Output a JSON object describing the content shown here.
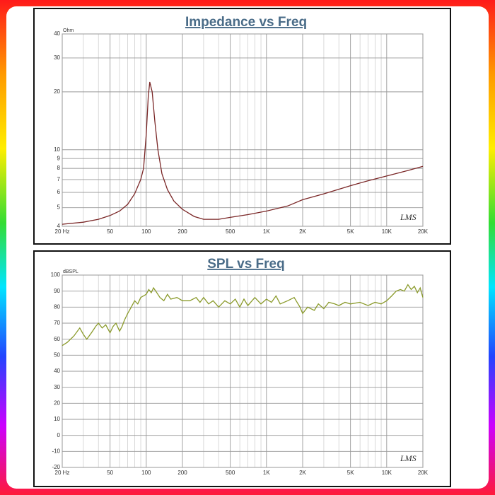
{
  "chart_data": [
    {
      "type": "line",
      "title": "Impedance vs Freq",
      "y_unit": "Ohm",
      "annotation": "LMS",
      "xscale": "log",
      "yscale": "log",
      "grid": true,
      "color": "#7a2626",
      "xlim": [
        20,
        20000
      ],
      "ylim": [
        4,
        40
      ],
      "xticks": [
        {
          "value": 20,
          "label": "20 Hz"
        },
        50,
        100,
        200,
        500,
        {
          "value": 1000,
          "label": "1K"
        },
        {
          "value": 2000,
          "label": "2K"
        },
        {
          "value": 5000,
          "label": "5K"
        },
        {
          "value": 10000,
          "label": "10K"
        },
        {
          "value": 20000,
          "label": "20K"
        }
      ],
      "x_minor_grid": [
        30,
        40,
        60,
        70,
        80,
        90,
        300,
        400,
        600,
        700,
        800,
        900,
        3000,
        4000,
        6000,
        7000,
        8000,
        9000
      ],
      "yticks": [
        4,
        5,
        6,
        7,
        8,
        9,
        10,
        20,
        30,
        40
      ],
      "x": [
        20,
        30,
        40,
        50,
        60,
        70,
        80,
        90,
        95,
        100,
        104,
        107,
        112,
        118,
        125,
        135,
        150,
        170,
        200,
        250,
        300,
        400,
        500,
        700,
        1000,
        1500,
        2000,
        3000,
        5000,
        7000,
        10000,
        15000,
        20000
      ],
      "values": [
        4.1,
        4.2,
        4.35,
        4.55,
        4.8,
        5.2,
        5.9,
        7.0,
        8.0,
        12,
        19,
        22.5,
        20,
        14,
        10,
        7.5,
        6.2,
        5.4,
        4.9,
        4.5,
        4.35,
        4.35,
        4.45,
        4.6,
        4.8,
        5.1,
        5.5,
        5.9,
        6.5,
        6.9,
        7.3,
        7.8,
        8.2
      ]
    },
    {
      "type": "line",
      "title": "SPL vs Freq",
      "y_unit": "dBSPL",
      "annotation": "LMS",
      "xscale": "log",
      "yscale": "linear",
      "grid": true,
      "color": "#8a9a2a",
      "xlim": [
        20,
        20000
      ],
      "ylim": [
        -20,
        100
      ],
      "xticks": [
        {
          "value": 20,
          "label": "20 Hz"
        },
        50,
        100,
        200,
        500,
        {
          "value": 1000,
          "label": "1K"
        },
        {
          "value": 2000,
          "label": "2K"
        },
        {
          "value": 5000,
          "label": "5K"
        },
        {
          "value": 10000,
          "label": "10K"
        },
        {
          "value": 20000,
          "label": "20K"
        }
      ],
      "x_minor_grid": [
        30,
        40,
        60,
        70,
        80,
        90,
        300,
        400,
        600,
        700,
        800,
        900,
        3000,
        4000,
        6000,
        7000,
        8000,
        9000
      ],
      "yticks": [
        -20,
        -10,
        0,
        10,
        20,
        30,
        40,
        50,
        60,
        70,
        80,
        90,
        100
      ],
      "x": [
        20,
        22,
        25,
        28,
        30,
        32,
        35,
        38,
        40,
        43,
        46,
        50,
        53,
        56,
        60,
        63,
        66,
        70,
        75,
        80,
        85,
        90,
        100,
        105,
        110,
        115,
        120,
        130,
        140,
        150,
        160,
        180,
        200,
        230,
        260,
        280,
        300,
        330,
        360,
        400,
        450,
        500,
        550,
        600,
        650,
        700,
        800,
        900,
        1000,
        1100,
        1200,
        1300,
        1500,
        1700,
        1900,
        2000,
        2200,
        2500,
        2700,
        3000,
        3300,
        3700,
        4000,
        4500,
        5000,
        6000,
        7000,
        8000,
        9000,
        10000,
        11000,
        12000,
        13000,
        14000,
        15000,
        16000,
        17000,
        18000,
        19000,
        20000
      ],
      "values": [
        56,
        58,
        62,
        67,
        63,
        60,
        64,
        68,
        70,
        67,
        69,
        64,
        68,
        70,
        65,
        68,
        72,
        76,
        80,
        84,
        82,
        86,
        88,
        91,
        89,
        92,
        90,
        86,
        84,
        88,
        85,
        86,
        84,
        84,
        86,
        83,
        86,
        82,
        84,
        80,
        84,
        82,
        85,
        80,
        85,
        81,
        86,
        82,
        85,
        83,
        87,
        82,
        84,
        86,
        80,
        76,
        80,
        78,
        82,
        79,
        83,
        82,
        81,
        83,
        82,
        83,
        81,
        83,
        82,
        84,
        87,
        90,
        91,
        90,
        94,
        91,
        93,
        89,
        92,
        86
      ]
    }
  ]
}
